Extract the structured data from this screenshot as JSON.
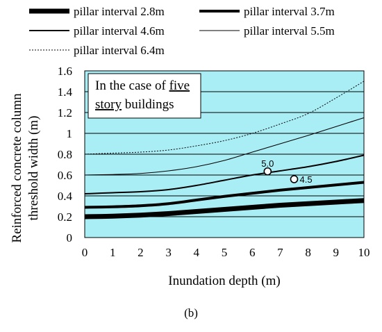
{
  "chart_data": {
    "type": "line",
    "title": "",
    "xlabel": "Inundation depth (m)",
    "ylabel_lines": [
      "Reinforced concrete column",
      "threshold width (m)"
    ],
    "xlim": [
      0,
      10
    ],
    "ylim": [
      0,
      1.6
    ],
    "x_ticks": [
      0,
      1,
      2,
      3,
      4,
      5,
      6,
      7,
      8,
      9,
      10
    ],
    "y_ticks": [
      0,
      0.2,
      0.4,
      0.6,
      0.8,
      1,
      1.2,
      1.4,
      1.6
    ],
    "x_tick_labels": [
      "0",
      "1",
      "2",
      "3",
      "4",
      "5",
      "6",
      "7",
      "8",
      "9",
      "10"
    ],
    "y_tick_labels": [
      "0",
      "0.2",
      "0.4",
      "0.6",
      "0.8",
      "1",
      "1.2",
      "1.4",
      "1.6"
    ],
    "grid": "horizontal",
    "background": "#aaeef5",
    "legend_position": "top",
    "x": [
      0,
      1,
      2,
      3,
      4,
      5,
      6,
      7,
      8,
      9,
      10
    ],
    "series": [
      {
        "name": "pillar interval 2.8m",
        "style": "very-thick",
        "values": [
          0.2,
          0.205,
          0.215,
          0.23,
          0.25,
          0.27,
          0.29,
          0.31,
          0.325,
          0.34,
          0.355
        ]
      },
      {
        "name": "pillar interval 3.7m",
        "style": "thick",
        "values": [
          0.29,
          0.295,
          0.305,
          0.325,
          0.36,
          0.395,
          0.425,
          0.455,
          0.48,
          0.505,
          0.53
        ]
      },
      {
        "name": "pillar interval 4.6m",
        "style": "medium",
        "values": [
          0.42,
          0.43,
          0.44,
          0.46,
          0.5,
          0.55,
          0.6,
          0.64,
          0.68,
          0.73,
          0.79
        ]
      },
      {
        "name": "pillar interval 5.5m",
        "style": "thin",
        "values": [
          0.6,
          0.605,
          0.615,
          0.64,
          0.68,
          0.74,
          0.82,
          0.9,
          0.98,
          1.065,
          1.15
        ]
      },
      {
        "name": "pillar interval 6.4m",
        "style": "dotted",
        "values": [
          0.8,
          0.81,
          0.82,
          0.84,
          0.88,
          0.93,
          1.0,
          1.09,
          1.19,
          1.34,
          1.5
        ]
      }
    ],
    "annotations": [
      {
        "label": "5.0",
        "x": 6.55,
        "y": 0.635
      },
      {
        "label": "4.5",
        "x": 7.5,
        "y": 0.56
      }
    ],
    "note": {
      "prefix": "In the case of ",
      "u1": "five",
      "u2": "story",
      "suffix": " buildings"
    }
  },
  "caption": "(b)"
}
